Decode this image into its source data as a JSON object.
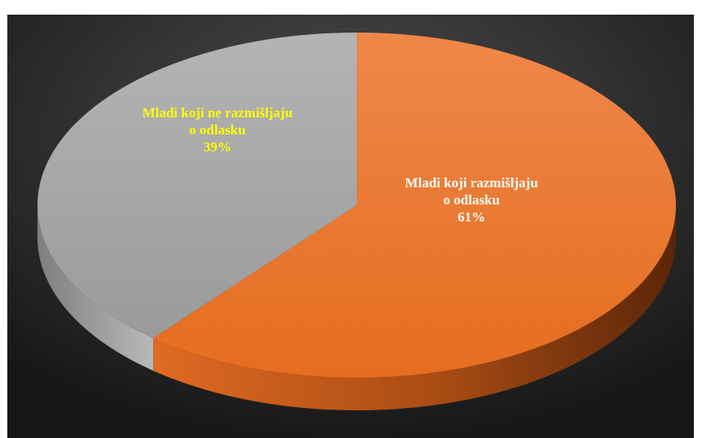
{
  "caption_fragment": "",
  "chart_data": {
    "type": "pie",
    "style": "3d",
    "title": "",
    "categories": [
      "Mladi koji razmišljaju o odlasku",
      "Mladi koji ne razmišljaju o odlasku"
    ],
    "values": [
      61,
      39
    ],
    "labels": [
      {
        "lines": [
          "Mladi koji razmišljaju",
          "o odlasku",
          "61%"
        ],
        "color": "#ffffff"
      },
      {
        "lines": [
          "Mladi koji ne razmišljaju",
          "o odlasku",
          "39%"
        ],
        "color": "#ffff00"
      }
    ],
    "colors": [
      "#e8722a",
      "#a3a3a3"
    ],
    "legend": "none",
    "background": "#3a3a3a"
  }
}
